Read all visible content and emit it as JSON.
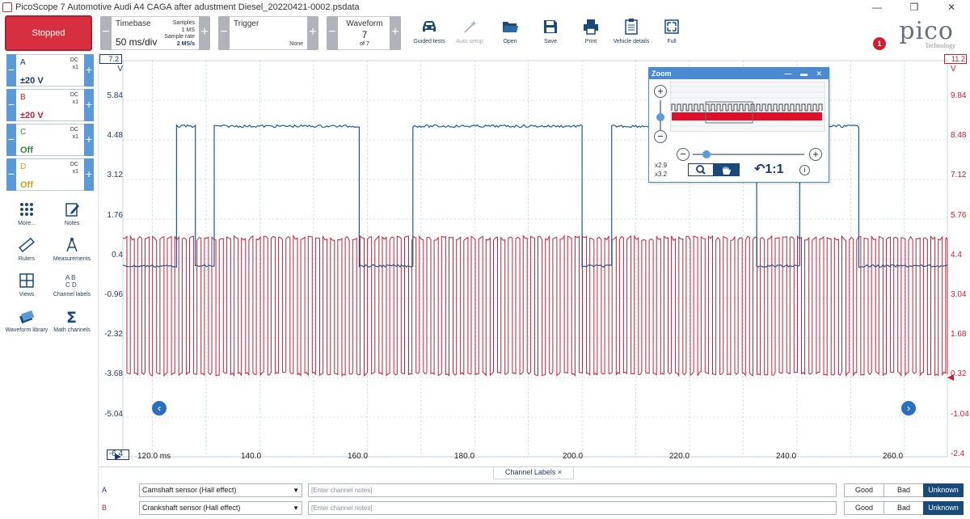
{
  "window": {
    "title": "PicoScope 7 Automotive Audi A4 CAGA after adustment Diesel_20220421-0002.psdata",
    "minimize": "—",
    "maximize": "❐",
    "close": "✕"
  },
  "toolbar": {
    "run_state": "Stopped",
    "timebase": {
      "label": "Timebase",
      "value": "50 ms/div",
      "samples_label": "Samples",
      "samples_value": "1 MS",
      "rate_label": "Sample rate",
      "rate_value": "2 MS/s"
    },
    "trigger": {
      "label": "Trigger",
      "mode": "None"
    },
    "waveform": {
      "label": "Waveform",
      "current": "7",
      "of": "of 7"
    },
    "tools": [
      {
        "label": "Guided tests",
        "icon": "car-icon",
        "enabled": true
      },
      {
        "label": "Auto setup",
        "icon": "magic-wand-icon",
        "enabled": false
      },
      {
        "label": "Open",
        "icon": "folder-icon",
        "enabled": true
      },
      {
        "label": "Save",
        "icon": "save-icon",
        "enabled": true
      },
      {
        "label": "Print",
        "icon": "printer-icon",
        "enabled": true
      },
      {
        "label": "Vehicle details",
        "icon": "clipboard-icon",
        "enabled": true
      },
      {
        "label": "Full",
        "icon": "fullscreen-icon",
        "enabled": true
      }
    ],
    "notifications": "1",
    "logo": {
      "word": "pico",
      "sub": "Technology"
    }
  },
  "channels": [
    {
      "letter": "A",
      "coupling": "DC",
      "probe": "x1",
      "range": "±20 V",
      "color": "#1a5a9a"
    },
    {
      "letter": "B",
      "coupling": "DC",
      "probe": "x1",
      "range": "±20 V",
      "color": "#c02038"
    },
    {
      "letter": "C",
      "coupling": "DC",
      "probe": "x1",
      "range": "Off",
      "color": "#2a8a3a"
    },
    {
      "letter": "D",
      "coupling": "DC",
      "probe": "x1",
      "range": "Off",
      "color": "#d0a020"
    }
  ],
  "left_tools": [
    {
      "label": "More...",
      "icon": "more-dots-icon"
    },
    {
      "label": "Notes",
      "icon": "notes-icon"
    },
    {
      "label": "Rulers",
      "icon": "ruler-icon"
    },
    {
      "label": "Measurements",
      "icon": "measurements-icon"
    },
    {
      "label": "Views",
      "icon": "views-grid-icon"
    },
    {
      "label": "Channel labels",
      "icon": "channel-labels-icon"
    },
    {
      "label": "Waveform library",
      "icon": "waveform-library-icon"
    },
    {
      "label": "Math channels",
      "icon": "sigma-icon"
    }
  ],
  "scope": {
    "y_left": {
      "unit": "V",
      "top": "7.2",
      "ticks": [
        "5.84",
        "4.48",
        "3.12",
        "1.76",
        "0.4",
        "-0.96",
        "-2.32",
        "-3.68",
        "-5.04",
        "-6.4"
      ]
    },
    "y_right": {
      "unit": "V",
      "top": "11.2",
      "ticks": [
        "9.84",
        "8.48",
        "7.12",
        "5.76",
        "4.4",
        "3.04",
        "1.68",
        "0.32",
        "-1.04",
        "-2.4"
      ]
    },
    "x_ticks": [
      "120.0 ms",
      "140.0",
      "160.0",
      "180.0",
      "200.0",
      "220.0",
      "240.0",
      "260.0"
    ],
    "prev_button": "‹",
    "next_button": "›"
  },
  "chart_data": {
    "type": "line",
    "title": "",
    "xlabel": "ms",
    "ylabel": "V",
    "xlim": [
      114.5,
      268.0
    ],
    "ylim_left": [
      -6.4,
      7.2
    ],
    "ylim_right": [
      -2.4,
      11.2
    ],
    "grid": true,
    "series": [
      {
        "name": "A - Camshaft sensor (Hall effect)",
        "axis": "left",
        "color": "#1a5a9a",
        "low_v": 0.15,
        "high_v": 4.95,
        "segments_ms": [
          [
            114.5,
            124.5,
            "low"
          ],
          [
            124.5,
            128.0,
            "high"
          ],
          [
            128.0,
            131.5,
            "low"
          ],
          [
            131.5,
            158.5,
            "high"
          ],
          [
            158.5,
            168.5,
            "low"
          ],
          [
            168.5,
            200.0,
            "high"
          ],
          [
            200.0,
            205.5,
            "low"
          ],
          [
            205.5,
            232.5,
            "high"
          ],
          [
            232.5,
            240.5,
            "low"
          ],
          [
            240.5,
            251.5,
            "high"
          ],
          [
            251.5,
            268.0,
            "low"
          ]
        ]
      },
      {
        "name": "B - Crankshaft sensor (Hall effect)",
        "axis": "right",
        "color": "#c02038",
        "low_v": 0.45,
        "high_v": 5.1,
        "period_ms": 1.38,
        "duty": 0.55
      }
    ]
  },
  "zoom_window": {
    "title": "Zoom",
    "zoom_in": "+",
    "zoom_out": "−",
    "factor_x": "x2.9",
    "factor_y": "x3.2",
    "reset_label": "1:1",
    "info": "i"
  },
  "channel_labels": {
    "tab_label": "Channel Labels",
    "tab_close": "×",
    "rows": [
      {
        "channel": "A",
        "color": "#1a3a6a",
        "label": "Camshaft sensor (Hall effect)",
        "notes_placeholder": "[Enter channel notes]",
        "good": "Good",
        "bad": "Bad",
        "unknown": "Unknown"
      },
      {
        "channel": "B",
        "color": "#c02038",
        "label": "Crankshaft sensor (Hall effect)",
        "notes_placeholder": "[Enter channel notes]",
        "good": "Good",
        "bad": "Bad",
        "unknown": "Unknown"
      }
    ]
  }
}
